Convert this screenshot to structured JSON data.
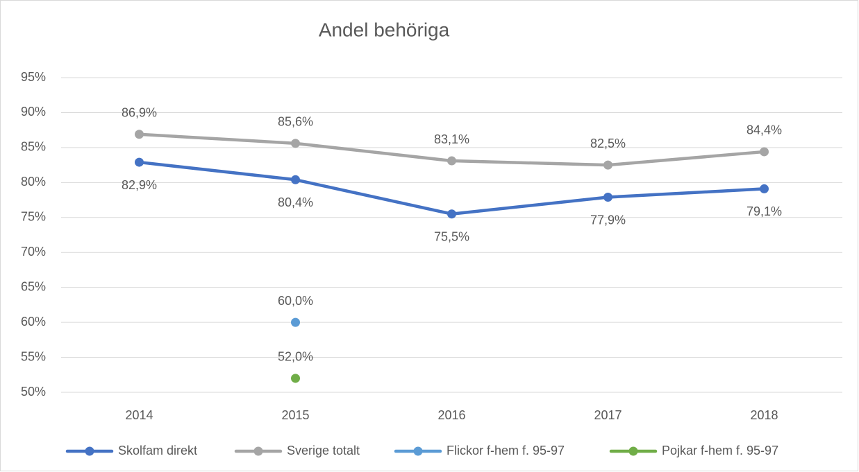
{
  "chart_data": {
    "type": "line",
    "title": "Andel behöriga",
    "categories": [
      "2014",
      "2015",
      "2016",
      "2017",
      "2018"
    ],
    "series": [
      {
        "name": "Skolfam direkt",
        "color": "#4472c4",
        "values": [
          82.9,
          80.4,
          75.5,
          77.9,
          79.1
        ],
        "value_labels": [
          "82,9%",
          "80,4%",
          "75,5%",
          "77,9%",
          "79,1%"
        ]
      },
      {
        "name": "Sverige totalt",
        "color": "#a5a5a5",
        "values": [
          86.9,
          85.6,
          83.1,
          82.5,
          84.4
        ],
        "value_labels": [
          "86,9%",
          "85,6%",
          "83,1%",
          "82,5%",
          "84,4%"
        ]
      },
      {
        "name": "Flickor f-hem f. 95-97",
        "color": "#5b9bd5",
        "values": [
          null,
          60.0,
          null,
          null,
          null
        ],
        "value_labels": [
          null,
          "60,0%",
          null,
          null,
          null
        ]
      },
      {
        "name": "Pojkar f-hem f. 95-97",
        "color": "#70ad47",
        "values": [
          null,
          52.0,
          null,
          null,
          null
        ],
        "value_labels": [
          null,
          "52,0%",
          null,
          null,
          null
        ]
      }
    ],
    "ylim": [
      50,
      95
    ],
    "yticks": [
      {
        "value": 50,
        "label": "50%"
      },
      {
        "value": 55,
        "label": "55%"
      },
      {
        "value": 60,
        "label": "60%"
      },
      {
        "value": 65,
        "label": "65%"
      },
      {
        "value": 70,
        "label": "70%"
      },
      {
        "value": 75,
        "label": "75%"
      },
      {
        "value": 80,
        "label": "80%"
      },
      {
        "value": 85,
        "label": "85%"
      },
      {
        "value": 90,
        "label": "90%"
      },
      {
        "value": 95,
        "label": "95%"
      }
    ],
    "grid": true,
    "legend": "bottom"
  }
}
